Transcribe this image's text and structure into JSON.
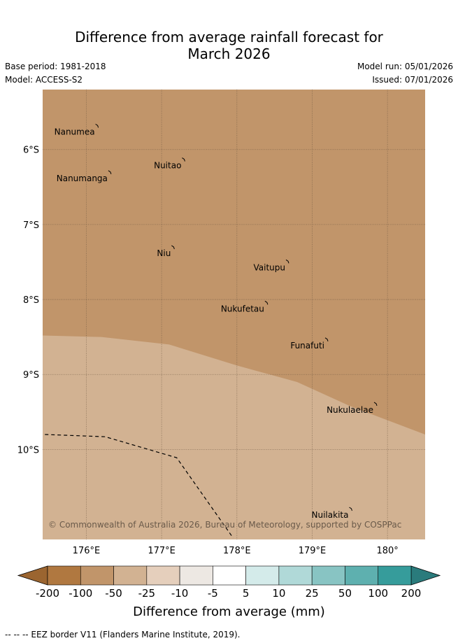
{
  "title": {
    "line1": "Difference from average rainfall forecast for",
    "line2": "March 2026"
  },
  "meta": {
    "base_period": "Base period: 1981-2018",
    "model": "Model: ACCESS-S2",
    "model_run": "Model run: 05/01/2026",
    "issued": "Issued: 07/01/2026"
  },
  "map": {
    "lon_range": [
      175.42,
      180.5
    ],
    "lat_range": [
      -5.2,
      -11.2
    ],
    "lon_ticks": [
      {
        "value": 176,
        "label": "176°E"
      },
      {
        "value": 177,
        "label": "177°E"
      },
      {
        "value": 178,
        "label": "178°E"
      },
      {
        "value": 179,
        "label": "179°E"
      },
      {
        "value": 180,
        "label": "180°"
      }
    ],
    "lat_ticks": [
      {
        "value": -6,
        "label": "6°S"
      },
      {
        "value": -7,
        "label": "7°S"
      },
      {
        "value": -8,
        "label": "8°S"
      },
      {
        "value": -9,
        "label": "9°S"
      },
      {
        "value": -10,
        "label": "10°S"
      }
    ],
    "zones": [
      {
        "range": "-100 to -50",
        "color": "#c1956a"
      },
      {
        "range": "-50 to -25",
        "color": "#d2b292"
      }
    ],
    "zone_boundary": [
      [
        175.42,
        -8.48
      ],
      [
        176.2,
        -8.5
      ],
      [
        177.1,
        -8.6
      ],
      [
        178.0,
        -8.88
      ],
      [
        178.8,
        -9.1
      ],
      [
        179.5,
        -9.42
      ],
      [
        180.5,
        -9.8
      ]
    ],
    "eez_border": [
      [
        175.45,
        -9.8
      ],
      [
        176.25,
        -9.83
      ],
      [
        177.2,
        -10.11
      ],
      [
        177.95,
        -11.18
      ]
    ],
    "places": [
      {
        "name": "Nanumea",
        "lon": 176.15,
        "lat": -5.67
      },
      {
        "name": "Nuitao",
        "lon": 177.3,
        "lat": -6.12
      },
      {
        "name": "Nanumanga",
        "lon": 176.32,
        "lat": -6.29
      },
      {
        "name": "Niu",
        "lon": 177.16,
        "lat": -7.29
      },
      {
        "name": "Vaitupu",
        "lon": 178.68,
        "lat": -7.48
      },
      {
        "name": "Nukufetau",
        "lon": 178.4,
        "lat": -8.03
      },
      {
        "name": "Funafuti",
        "lon": 179.2,
        "lat": -8.52
      },
      {
        "name": "Nukulaelae",
        "lon": 179.85,
        "lat": -9.38
      },
      {
        "name": "Nuilakita",
        "lon": 179.52,
        "lat": -10.78
      }
    ],
    "copyright": "© Commonwealth of Australia 2026, Bureau of Meteorology, supported by COSPPac"
  },
  "colorbar": {
    "label": "Difference from average (mm)",
    "ticks": [
      "-200",
      "-100",
      "-50",
      "-25",
      "-10",
      "-5",
      "5",
      "10",
      "25",
      "50",
      "100",
      "200"
    ],
    "low_extend_color": "#9b6530",
    "high_extend_color": "#2a7b7c",
    "colors": [
      "#b07840",
      "#c1956a",
      "#d2b292",
      "#e5cfbc",
      "#ede8e3",
      "#ffffff",
      "#d4ebea",
      "#b0d9d8",
      "#88c4c3",
      "#5eb0af",
      "#369c9b"
    ]
  },
  "footer": {
    "eez_note": "--  --  -- EEZ border V11 (Flanders Marine Institute, 2019)."
  }
}
